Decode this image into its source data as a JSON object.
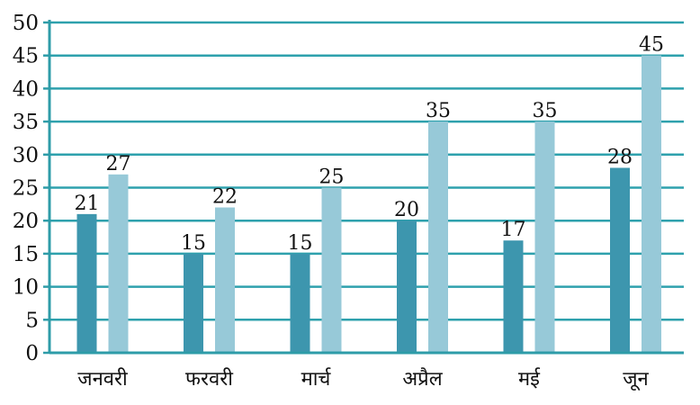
{
  "chart_data": {
    "type": "bar",
    "categories": [
      "जनवरी",
      "फरवरी",
      "मार्च",
      "अप्रैल",
      "मई",
      "जून"
    ],
    "series": [
      {
        "values": [
          21,
          15,
          15,
          20,
          17,
          28
        ],
        "color": "#3d96ae"
      },
      {
        "values": [
          27,
          22,
          25,
          35,
          35,
          45
        ],
        "color": "#97c9d8"
      }
    ],
    "ylim": [
      0,
      50
    ],
    "yticks": [
      0,
      5,
      10,
      15,
      20,
      25,
      30,
      35,
      40,
      45,
      50
    ],
    "grid": true,
    "grid_color": "#2ea1ad",
    "axis_color": "#2e9ca8",
    "data_labels": true,
    "title": "",
    "xlabel": "",
    "ylabel": ""
  }
}
